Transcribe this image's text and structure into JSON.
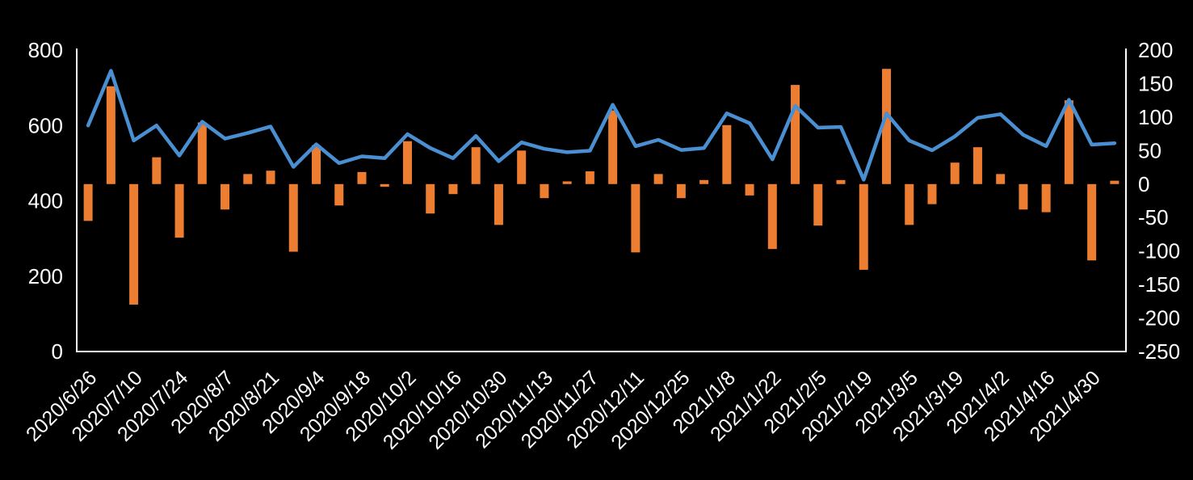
{
  "chart_data": {
    "type": "bar",
    "subtype": "combo-line-and-bar-dual-axis",
    "title": "",
    "xlabel": "",
    "ylabel": "",
    "n_points": 46,
    "x_labels": [
      "2020/6/26",
      "2020/7/10",
      "2020/7/24",
      "2020/8/7",
      "2020/8/21",
      "2020/9/4",
      "2020/9/18",
      "2020/10/2",
      "2020/10/16",
      "2020/10/30",
      "2020/11/13",
      "2020/11/27",
      "2020/12/11",
      "2020/12/25",
      "2021/1/8",
      "2021/1/22",
      "2021/2/5",
      "2021/2/19",
      "2021/3/5",
      "2021/3/19",
      "2021/4/2",
      "2021/4/16",
      "2021/4/30"
    ],
    "x_label_every_n_points": 2,
    "series": [
      {
        "name": "level-line",
        "type": "line",
        "axis": "left",
        "color": "#4A8FD1",
        "values": [
          600,
          745,
          560,
          600,
          520,
          610,
          565,
          580,
          597,
          490,
          550,
          500,
          518,
          513,
          577,
          540,
          513,
          572,
          505,
          555,
          538,
          529,
          533,
          655,
          545,
          562,
          535,
          540,
          632,
          606,
          510,
          652,
          594,
          596,
          456,
          632,
          560,
          534,
          571,
          620,
          630,
          575,
          545,
          668,
          549,
          553
        ]
      },
      {
        "name": "change-bars",
        "type": "bar",
        "axis": "right",
        "color": "#ED7D31",
        "values": [
          -55,
          146,
          -180,
          40,
          -80,
          92,
          -38,
          15,
          20,
          -101,
          58,
          -32,
          18,
          -4,
          64,
          -44,
          -15,
          55,
          -61,
          50,
          -21,
          4,
          19,
          110,
          -102,
          15,
          -21,
          6,
          88,
          -17,
          -97,
          148,
          -62,
          6,
          -128,
          172,
          -61,
          -30,
          32,
          55,
          15,
          -38,
          -42,
          125,
          -114,
          5
        ]
      }
    ],
    "left_axis": {
      "min": 0,
      "max": 800,
      "ticks": [
        0,
        200,
        400,
        600,
        800
      ]
    },
    "right_axis": {
      "min": -250,
      "max": 200,
      "ticks": [
        200,
        150,
        100,
        50,
        0,
        -50,
        -100,
        -150,
        -200,
        -250
      ]
    },
    "grid": false,
    "legend": "none",
    "background_color": "#000000",
    "text_color": "#FFFFFF",
    "axis_line_color": "#FFFFFF"
  }
}
